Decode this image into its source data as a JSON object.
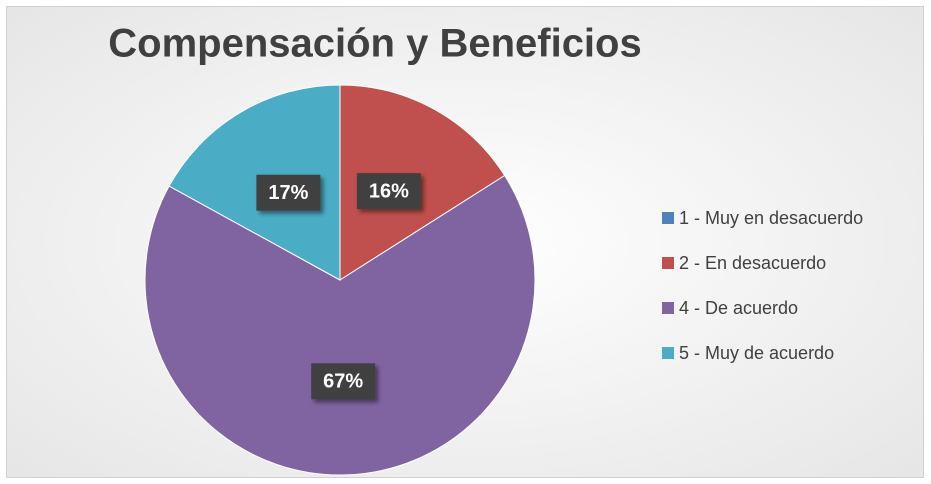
{
  "chart_data": {
    "type": "pie",
    "title": "Compensación y Beneficios",
    "categories": [
      "1 - Muy en desacuerdo",
      "2 - En desacuerdo",
      "4 - De acuerdo",
      "5 - Muy de acuerdo"
    ],
    "values": [
      0,
      16,
      67,
      17
    ],
    "value_labels": [
      null,
      "16%",
      "67%",
      "17%"
    ],
    "colors": [
      "#4f81bd",
      "#c0504d",
      "#8064a2",
      "#4bacc6"
    ],
    "legend": "right"
  }
}
